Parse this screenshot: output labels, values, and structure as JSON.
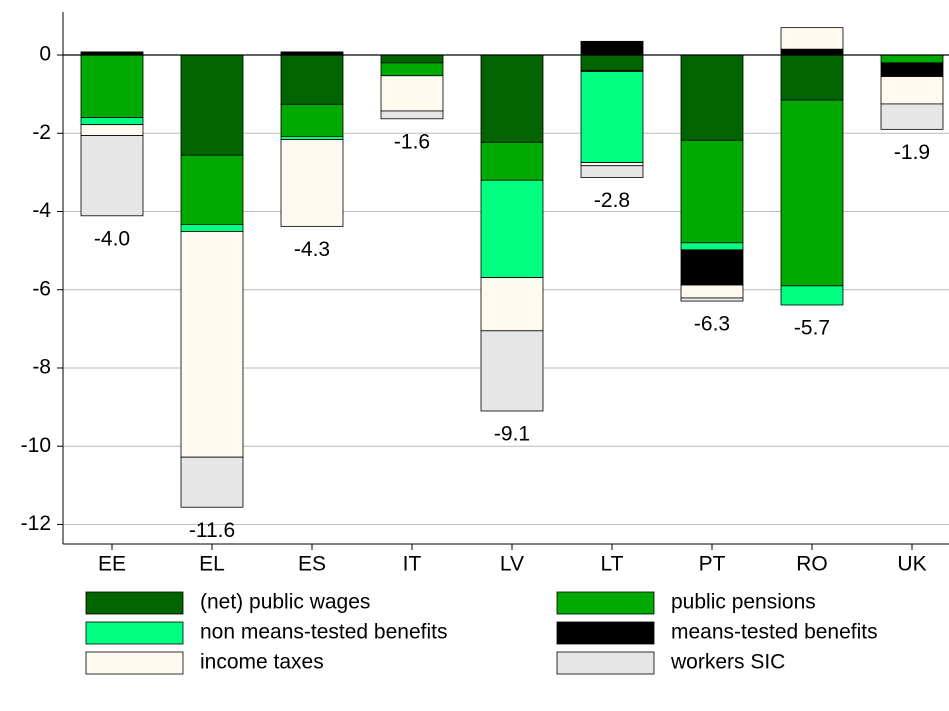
{
  "chart_data": {
    "type": "stacked-bar",
    "categories": [
      "EE",
      "EL",
      "ES",
      "IT",
      "LV",
      "LT",
      "PT",
      "RO",
      "UK"
    ],
    "series": [
      {
        "name": "(net) public wages",
        "color": "#006400",
        "values": [
          0,
          -2.56,
          -1.26,
          -0.2,
          -2.23,
          -0.4,
          -2.18,
          -1.15,
          0
        ]
      },
      {
        "name": "public pensions",
        "color": "#00aa00",
        "values": [
          -1.6,
          -1.77,
          -0.82,
          -0.33,
          -0.97,
          -0.02,
          -2.62,
          -4.75,
          -0.2
        ]
      },
      {
        "name": "non means-tested benefits",
        "color": "#00ff80",
        "values": [
          -0.18,
          -0.18,
          -0.08,
          0,
          -2.49,
          -2.33,
          -0.18,
          -0.49,
          0
        ]
      },
      {
        "name": "means-tested benefits",
        "color": "#000000",
        "values": [
          0.08,
          0,
          0.08,
          0,
          0,
          0.35,
          -0.9,
          0.15,
          -0.35
        ]
      },
      {
        "name": "income taxes",
        "color": "#fffaf0",
        "values": [
          -0.28,
          -5.77,
          -2.22,
          -0.9,
          -1.36,
          -0.08,
          -0.33,
          0.55,
          -0.7
        ]
      },
      {
        "name": "workers SIC",
        "color": "#e6e6e6",
        "values": [
          -2.05,
          -1.28,
          0,
          -0.2,
          -2.05,
          -0.3,
          -0.08,
          0,
          -0.65
        ]
      }
    ],
    "totals": {
      "values": [
        -4.0,
        -11.6,
        -4.3,
        -1.6,
        -9.1,
        -2.8,
        -6.3,
        -5.7,
        -1.9
      ],
      "value_labels": [
        "-4.0",
        "-11.6",
        "-4.3",
        "-1.6",
        "-9.1",
        "-2.8",
        "-6.3",
        "-5.7",
        "-1.9"
      ]
    },
    "ylim": [
      -12.5,
      1.1
    ],
    "yticks": [
      -12,
      -10,
      -8,
      -6,
      -4,
      -2,
      0
    ],
    "grid": true
  }
}
